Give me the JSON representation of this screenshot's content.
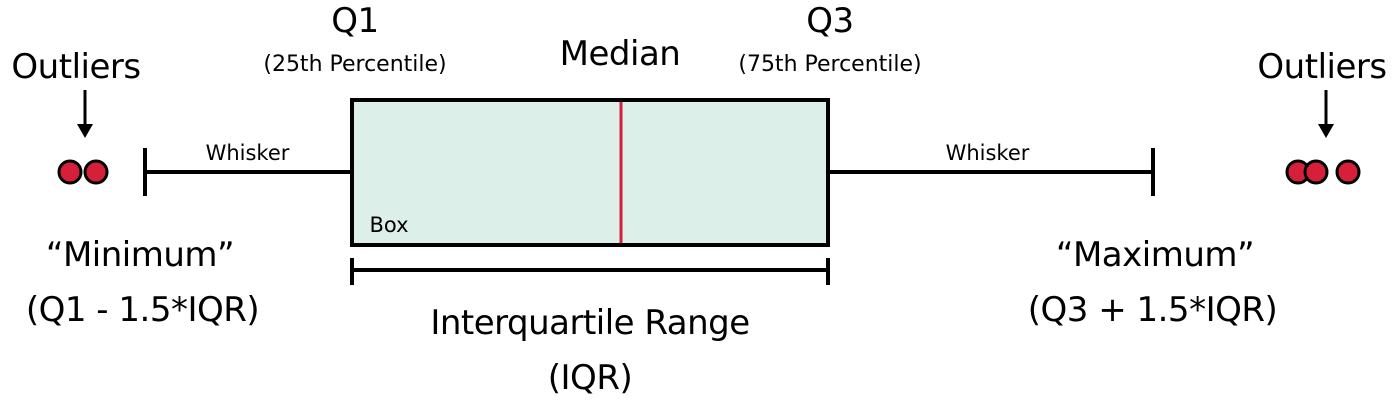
{
  "labels": {
    "q1": "Q1",
    "q1_sub": "(25th Percentile)",
    "median": "Median",
    "q3": "Q3",
    "q3_sub": "(75th Percentile)",
    "outliers_left": "Outliers",
    "outliers_right": "Outliers",
    "whisker_left": "Whisker",
    "whisker_right": "Whisker",
    "box": "Box",
    "minimum": "“Minimum”",
    "minimum_formula": "(Q1 - 1.5*IQR)",
    "maximum": "“Maximum”",
    "maximum_formula": "(Q3 + 1.5*IQR)",
    "iqr_title": "Interquartile Range",
    "iqr_abbr": "(IQR)"
  },
  "colors": {
    "box_fill": "#dcefe8",
    "line": "#000000",
    "median_line": "#d6203a",
    "outlier_fill": "#d6203a",
    "outlier_stroke": "#000000"
  },
  "icons": {
    "left_arrow": "arrow-down-icon",
    "right_arrow": "arrow-down-icon"
  }
}
